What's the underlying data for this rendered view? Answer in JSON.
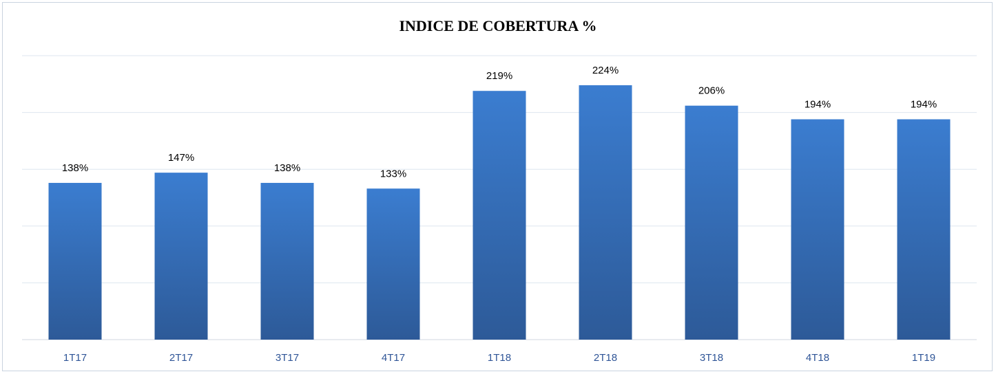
{
  "chart_data": {
    "type": "bar",
    "title": "INDICE DE COBERTURA %",
    "categories": [
      "1T17",
      "2T17",
      "3T17",
      "4T17",
      "1T18",
      "2T18",
      "3T18",
      "4T18",
      "1T19"
    ],
    "values": [
      138,
      147,
      138,
      133,
      219,
      224,
      206,
      194,
      194
    ],
    "value_labels": [
      "138%",
      "147%",
      "138%",
      "133%",
      "219%",
      "224%",
      "206%",
      "194%",
      "194%"
    ],
    "color": "#3b7dd0",
    "ylim": [
      0,
      250
    ],
    "yticks": [
      0,
      50,
      100,
      150,
      200,
      250
    ],
    "grid": true
  }
}
